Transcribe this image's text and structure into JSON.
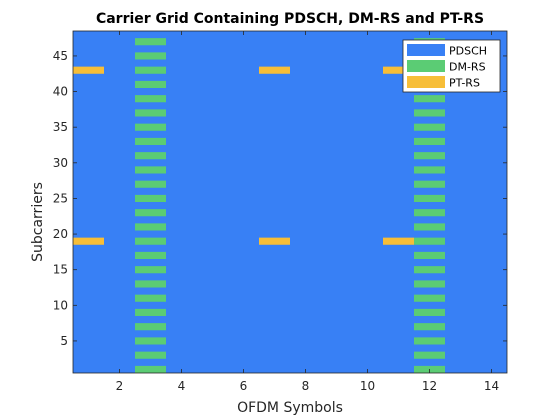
{
  "chart_data": {
    "type": "heatmap",
    "title": "Carrier Grid Containing PDSCH, DM-RS and PT-RS",
    "xlabel": "OFDM Symbols",
    "ylabel": "Subcarriers",
    "xlim": [
      0.5,
      14.5
    ],
    "ylim": [
      0.5,
      48.5
    ],
    "xticks": [
      2,
      4,
      6,
      8,
      10,
      12,
      14
    ],
    "yticks": [
      5,
      10,
      15,
      20,
      25,
      30,
      35,
      40,
      45
    ],
    "grid": false,
    "legend_position": "top-right",
    "background_series": "PDSCH",
    "series": [
      {
        "name": "PDSCH",
        "color": "#3880F5",
        "symbols": [
          1,
          2,
          3,
          4,
          5,
          6,
          7,
          8,
          9,
          10,
          11,
          12,
          13,
          14
        ],
        "subcarriers": "all"
      },
      {
        "name": "DM-RS",
        "color": "#5BCC74",
        "symbols": [
          3,
          12
        ],
        "subcarriers": [
          1,
          3,
          5,
          7,
          9,
          11,
          13,
          15,
          17,
          19,
          21,
          23,
          25,
          27,
          29,
          31,
          33,
          35,
          37,
          39,
          41,
          43,
          45,
          47
        ]
      },
      {
        "name": "PT-RS",
        "color": "#F7BE38",
        "symbols": [
          1,
          7,
          11
        ],
        "subcarriers": [
          19,
          43
        ]
      }
    ]
  }
}
